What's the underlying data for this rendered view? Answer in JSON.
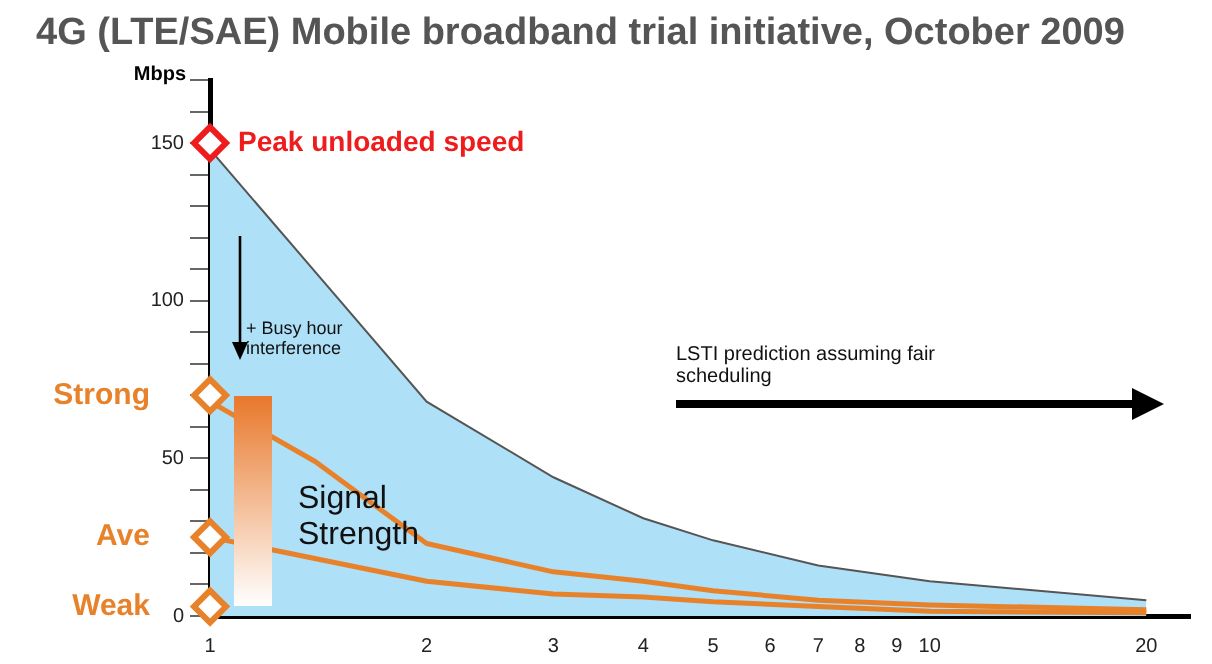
{
  "chart_data": {
    "type": "line",
    "title": "4G (LTE/SAE) Mobile broadband trial initiative, October 2009",
    "ylabel": "Mbps",
    "log": "x",
    "xlim": [
      1,
      23
    ],
    "xticks": [
      1,
      2,
      3,
      4,
      5,
      6,
      7,
      8,
      9,
      10,
      20
    ],
    "ylim": [
      0,
      170
    ],
    "yticks": [
      0,
      {
        "value": 10,
        "label": null
      },
      {
        "value": 20,
        "label": null
      },
      {
        "value": 30,
        "label": null
      },
      {
        "value": 40,
        "label": null
      },
      50,
      {
        "value": 60,
        "label": null
      },
      {
        "value": 70,
        "label": null
      },
      {
        "value": 80,
        "label": null
      },
      {
        "value": 90,
        "label": null
      },
      100,
      {
        "value": 110,
        "label": null
      },
      {
        "value": 120,
        "label": null
      },
      {
        "value": 130,
        "label": null
      },
      {
        "value": 140,
        "label": null
      },
      150,
      {
        "value": 160,
        "label": null
      },
      {
        "value": 170,
        "label": null
      }
    ],
    "grid": false,
    "legend": false,
    "series": [
      {
        "type": "area",
        "color": "#aee0f8",
        "x": [
          1,
          2,
          3,
          4,
          5,
          7,
          10,
          20
        ],
        "values": [
          148,
          68,
          44,
          31,
          24,
          16,
          11,
          5
        ]
      },
      {
        "color": "#e8822a",
        "x": [
          1,
          1.4,
          2,
          3,
          4,
          5,
          7,
          10,
          20
        ],
        "values": [
          68,
          49,
          23,
          14,
          11,
          8,
          5,
          3.5,
          2
        ]
      },
      {
        "color": "#e8822a",
        "x": [
          1,
          2,
          3,
          4,
          5,
          7,
          10,
          20
        ],
        "values": [
          25,
          11,
          7,
          6,
          4.5,
          3,
          1.5,
          1
        ]
      },
      {
        "type": "scatter",
        "marker": "diamond",
        "colors": [
          "#ee1c1c",
          "#e8822a",
          "#e8822a",
          "#e8822a"
        ],
        "x": [
          1,
          1,
          1,
          1
        ],
        "values": [
          150,
          70,
          25,
          3
        ],
        "value_labels": [
          "Peak unloaded speed",
          "Strong",
          "Ave",
          "Weak"
        ]
      }
    ],
    "annotations": [
      "+ Busy hour interference",
      "LSTI prediction assuming fair scheduling",
      "Signal Strength"
    ]
  }
}
